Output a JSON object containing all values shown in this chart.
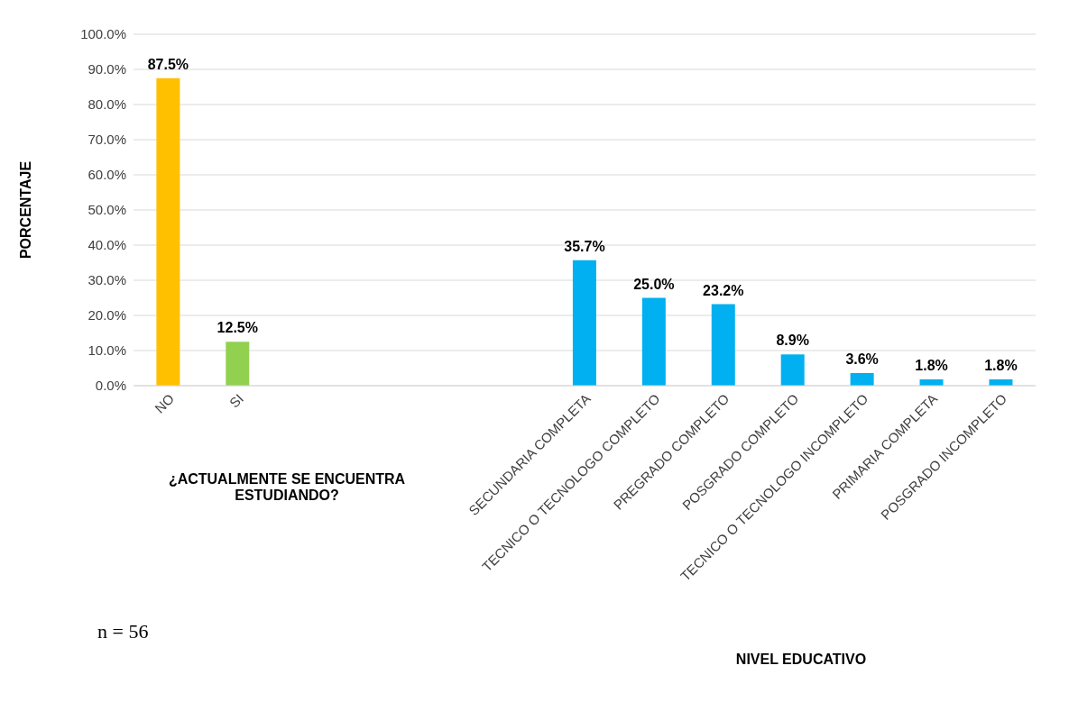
{
  "chart_data": {
    "type": "bar",
    "ylabel": "PORCENTAJE",
    "xlabel": "NIVEL EDUCATIVO",
    "categories": [
      "NO",
      "SI",
      null,
      null,
      null,
      null,
      "SECUNDARIA COMPLETA",
      "TECNICO O TECNOLOGO COMPLETO",
      "PREGRADO COMPLETO",
      "POSGRADO COMPLETO",
      "TECNICO O TECNOLOGO INCOMPLETO",
      "PRIMARIA COMPLETA",
      "POSGRADO INCOMPLETO"
    ],
    "values": [
      87.5,
      12.5,
      null,
      null,
      null,
      null,
      35.7,
      25.0,
      23.2,
      8.9,
      3.6,
      1.8,
      1.8
    ],
    "colors": [
      "#ffc000",
      "#92d050",
      "#00b0f0",
      "#00b0f0",
      "#00b0f0",
      "#00b0f0",
      "#00b0f0",
      "#00b0f0",
      "#00b0f0",
      "#00b0f0",
      "#00b0f0",
      "#00b0f0",
      "#00b0f0"
    ],
    "ylim": [
      0,
      100
    ],
    "yticks": [
      {
        "value": 0,
        "label": "0.0%"
      },
      {
        "value": 10,
        "label": "10.0%"
      },
      {
        "value": 20,
        "label": "20.0%"
      },
      {
        "value": 30,
        "label": "30.0%"
      },
      {
        "value": 40,
        "label": "40.0%"
      },
      {
        "value": 50,
        "label": "50.0%"
      },
      {
        "value": 60,
        "label": "60.0%"
      },
      {
        "value": 70,
        "label": "70.0%"
      },
      {
        "value": 80,
        "label": "80.0%"
      },
      {
        "value": 90,
        "label": "90.0%"
      },
      {
        "value": 100,
        "label": "100.0%"
      }
    ],
    "grid": "y",
    "value_labels": [
      "87.5%",
      "12.5%",
      null,
      null,
      null,
      null,
      "35.7%",
      "25.0%",
      "23.2%",
      "8.9%",
      "3.6%",
      "1.8%",
      "1.8%"
    ],
    "annotations": [
      "¿ACTUALMENTE SE ENCUENTRA ESTUDIANDO?",
      "n = 56"
    ]
  }
}
